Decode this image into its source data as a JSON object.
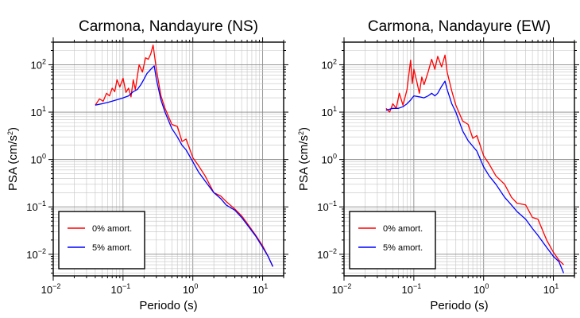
{
  "chart_data": [
    {
      "type": "line",
      "title": "Carmona, Nandayure (NS)",
      "xlabel": "Periodo (s)",
      "ylabel": "PSA (cm/s²)",
      "xscale": "log",
      "yscale": "log",
      "xlim": [
        0.01,
        20
      ],
      "ylim": [
        0.0035,
        300
      ],
      "xticks": [
        {
          "base": "10",
          "exp": "−2"
        },
        {
          "base": "10",
          "exp": "−1"
        },
        {
          "base": "10",
          "exp": "0"
        },
        {
          "base": "10",
          "exp": "1"
        }
      ],
      "yticks": [
        {
          "base": "10",
          "exp": "−2"
        },
        {
          "base": "10",
          "exp": "−1"
        },
        {
          "base": "10",
          "exp": "0"
        },
        {
          "base": "10",
          "exp": "1"
        },
        {
          "base": "10",
          "exp": "2"
        }
      ],
      "grid": true,
      "legend_position": "bottom-left",
      "series": [
        {
          "name": "0% amort.",
          "color": "#ff0000",
          "x": [
            0.04,
            0.046,
            0.052,
            0.058,
            0.064,
            0.07,
            0.076,
            0.082,
            0.09,
            0.1,
            0.11,
            0.12,
            0.13,
            0.14,
            0.15,
            0.17,
            0.19,
            0.21,
            0.23,
            0.25,
            0.27,
            0.3,
            0.35,
            0.4,
            0.5,
            0.6,
            0.7,
            0.8,
            1.0,
            1.2,
            1.5,
            2.0,
            2.5,
            3.0,
            4.0,
            5.0,
            6.0,
            8.0,
            10.0,
            12.0,
            14.0
          ],
          "y": [
            14,
            19,
            17,
            25,
            22,
            32,
            27,
            48,
            34,
            52,
            26,
            32,
            21,
            48,
            30,
            100,
            70,
            140,
            130,
            170,
            260,
            80,
            22,
            12,
            5.5,
            5.0,
            2.4,
            2.7,
            1.1,
            0.75,
            0.45,
            0.2,
            0.17,
            0.13,
            0.09,
            0.065,
            0.045,
            0.025,
            0.015,
            0.009,
            0.0055
          ]
        },
        {
          "name": "5% amort.",
          "color": "#0000ff",
          "x": [
            0.04,
            0.05,
            0.06,
            0.07,
            0.08,
            0.09,
            0.1,
            0.12,
            0.14,
            0.16,
            0.18,
            0.2,
            0.22,
            0.25,
            0.28,
            0.3,
            0.35,
            0.4,
            0.5,
            0.6,
            0.7,
            0.8,
            1.0,
            1.2,
            1.5,
            2.0,
            2.5,
            3.0,
            4.0,
            5.0,
            6.0,
            8.0,
            10.0,
            12.0,
            14.0
          ],
          "y": [
            14,
            15,
            16,
            17,
            18,
            19,
            20,
            22,
            27,
            30,
            38,
            50,
            65,
            80,
            95,
            50,
            18,
            10,
            4.5,
            3.0,
            2.0,
            1.6,
            0.9,
            0.55,
            0.35,
            0.2,
            0.15,
            0.11,
            0.085,
            0.06,
            0.042,
            0.024,
            0.014,
            0.009,
            0.0055
          ]
        }
      ]
    },
    {
      "type": "line",
      "title": "Carmona, Nandayure (EW)",
      "xlabel": "Periodo (s)",
      "ylabel": "PSA (cm/s²)",
      "xscale": "log",
      "yscale": "log",
      "xlim": [
        0.01,
        20
      ],
      "ylim": [
        0.0035,
        300
      ],
      "xticks": [
        {
          "base": "10",
          "exp": "−2"
        },
        {
          "base": "10",
          "exp": "−1"
        },
        {
          "base": "10",
          "exp": "0"
        },
        {
          "base": "10",
          "exp": "1"
        }
      ],
      "yticks": [
        {
          "base": "10",
          "exp": "−2"
        },
        {
          "base": "10",
          "exp": "−1"
        },
        {
          "base": "10",
          "exp": "0"
        },
        {
          "base": "10",
          "exp": "1"
        },
        {
          "base": "10",
          "exp": "2"
        }
      ],
      "grid": true,
      "legend_position": "bottom-left",
      "series": [
        {
          "name": "0% amort.",
          "color": "#ff0000",
          "x": [
            0.04,
            0.045,
            0.05,
            0.056,
            0.062,
            0.07,
            0.08,
            0.09,
            0.095,
            0.1,
            0.11,
            0.12,
            0.13,
            0.14,
            0.16,
            0.18,
            0.2,
            0.22,
            0.25,
            0.28,
            0.3,
            0.35,
            0.4,
            0.5,
            0.6,
            0.7,
            0.8,
            1.0,
            1.2,
            1.5,
            2.0,
            2.5,
            3.0,
            4.0,
            5.0,
            6.0,
            8.0,
            10.0,
            12.0,
            14.0
          ],
          "y": [
            12,
            10,
            15,
            12,
            25,
            14,
            30,
            125,
            40,
            80,
            45,
            25,
            55,
            38,
            70,
            130,
            80,
            150,
            90,
            160,
            70,
            28,
            14,
            6.5,
            5.5,
            2.8,
            3.2,
            1.2,
            0.8,
            0.45,
            0.3,
            0.16,
            0.12,
            0.11,
            0.06,
            0.055,
            0.02,
            0.011,
            0.0075,
            0.006
          ]
        },
        {
          "name": "5% amort.",
          "color": "#0000ff",
          "x": [
            0.04,
            0.05,
            0.06,
            0.07,
            0.08,
            0.09,
            0.1,
            0.12,
            0.14,
            0.16,
            0.18,
            0.2,
            0.22,
            0.25,
            0.28,
            0.3,
            0.35,
            0.4,
            0.5,
            0.6,
            0.7,
            0.8,
            1.0,
            1.2,
            1.5,
            2.0,
            2.5,
            3.0,
            4.0,
            5.0,
            6.0,
            8.0,
            10.0,
            12.0,
            14.0
          ],
          "y": [
            11,
            12,
            12,
            13,
            15,
            18,
            22,
            21,
            20,
            22,
            25,
            22,
            25,
            35,
            45,
            30,
            15,
            10,
            4.0,
            2.5,
            1.9,
            1.5,
            0.7,
            0.45,
            0.3,
            0.16,
            0.11,
            0.08,
            0.055,
            0.035,
            0.025,
            0.014,
            0.009,
            0.007,
            0.004
          ]
        }
      ]
    }
  ]
}
